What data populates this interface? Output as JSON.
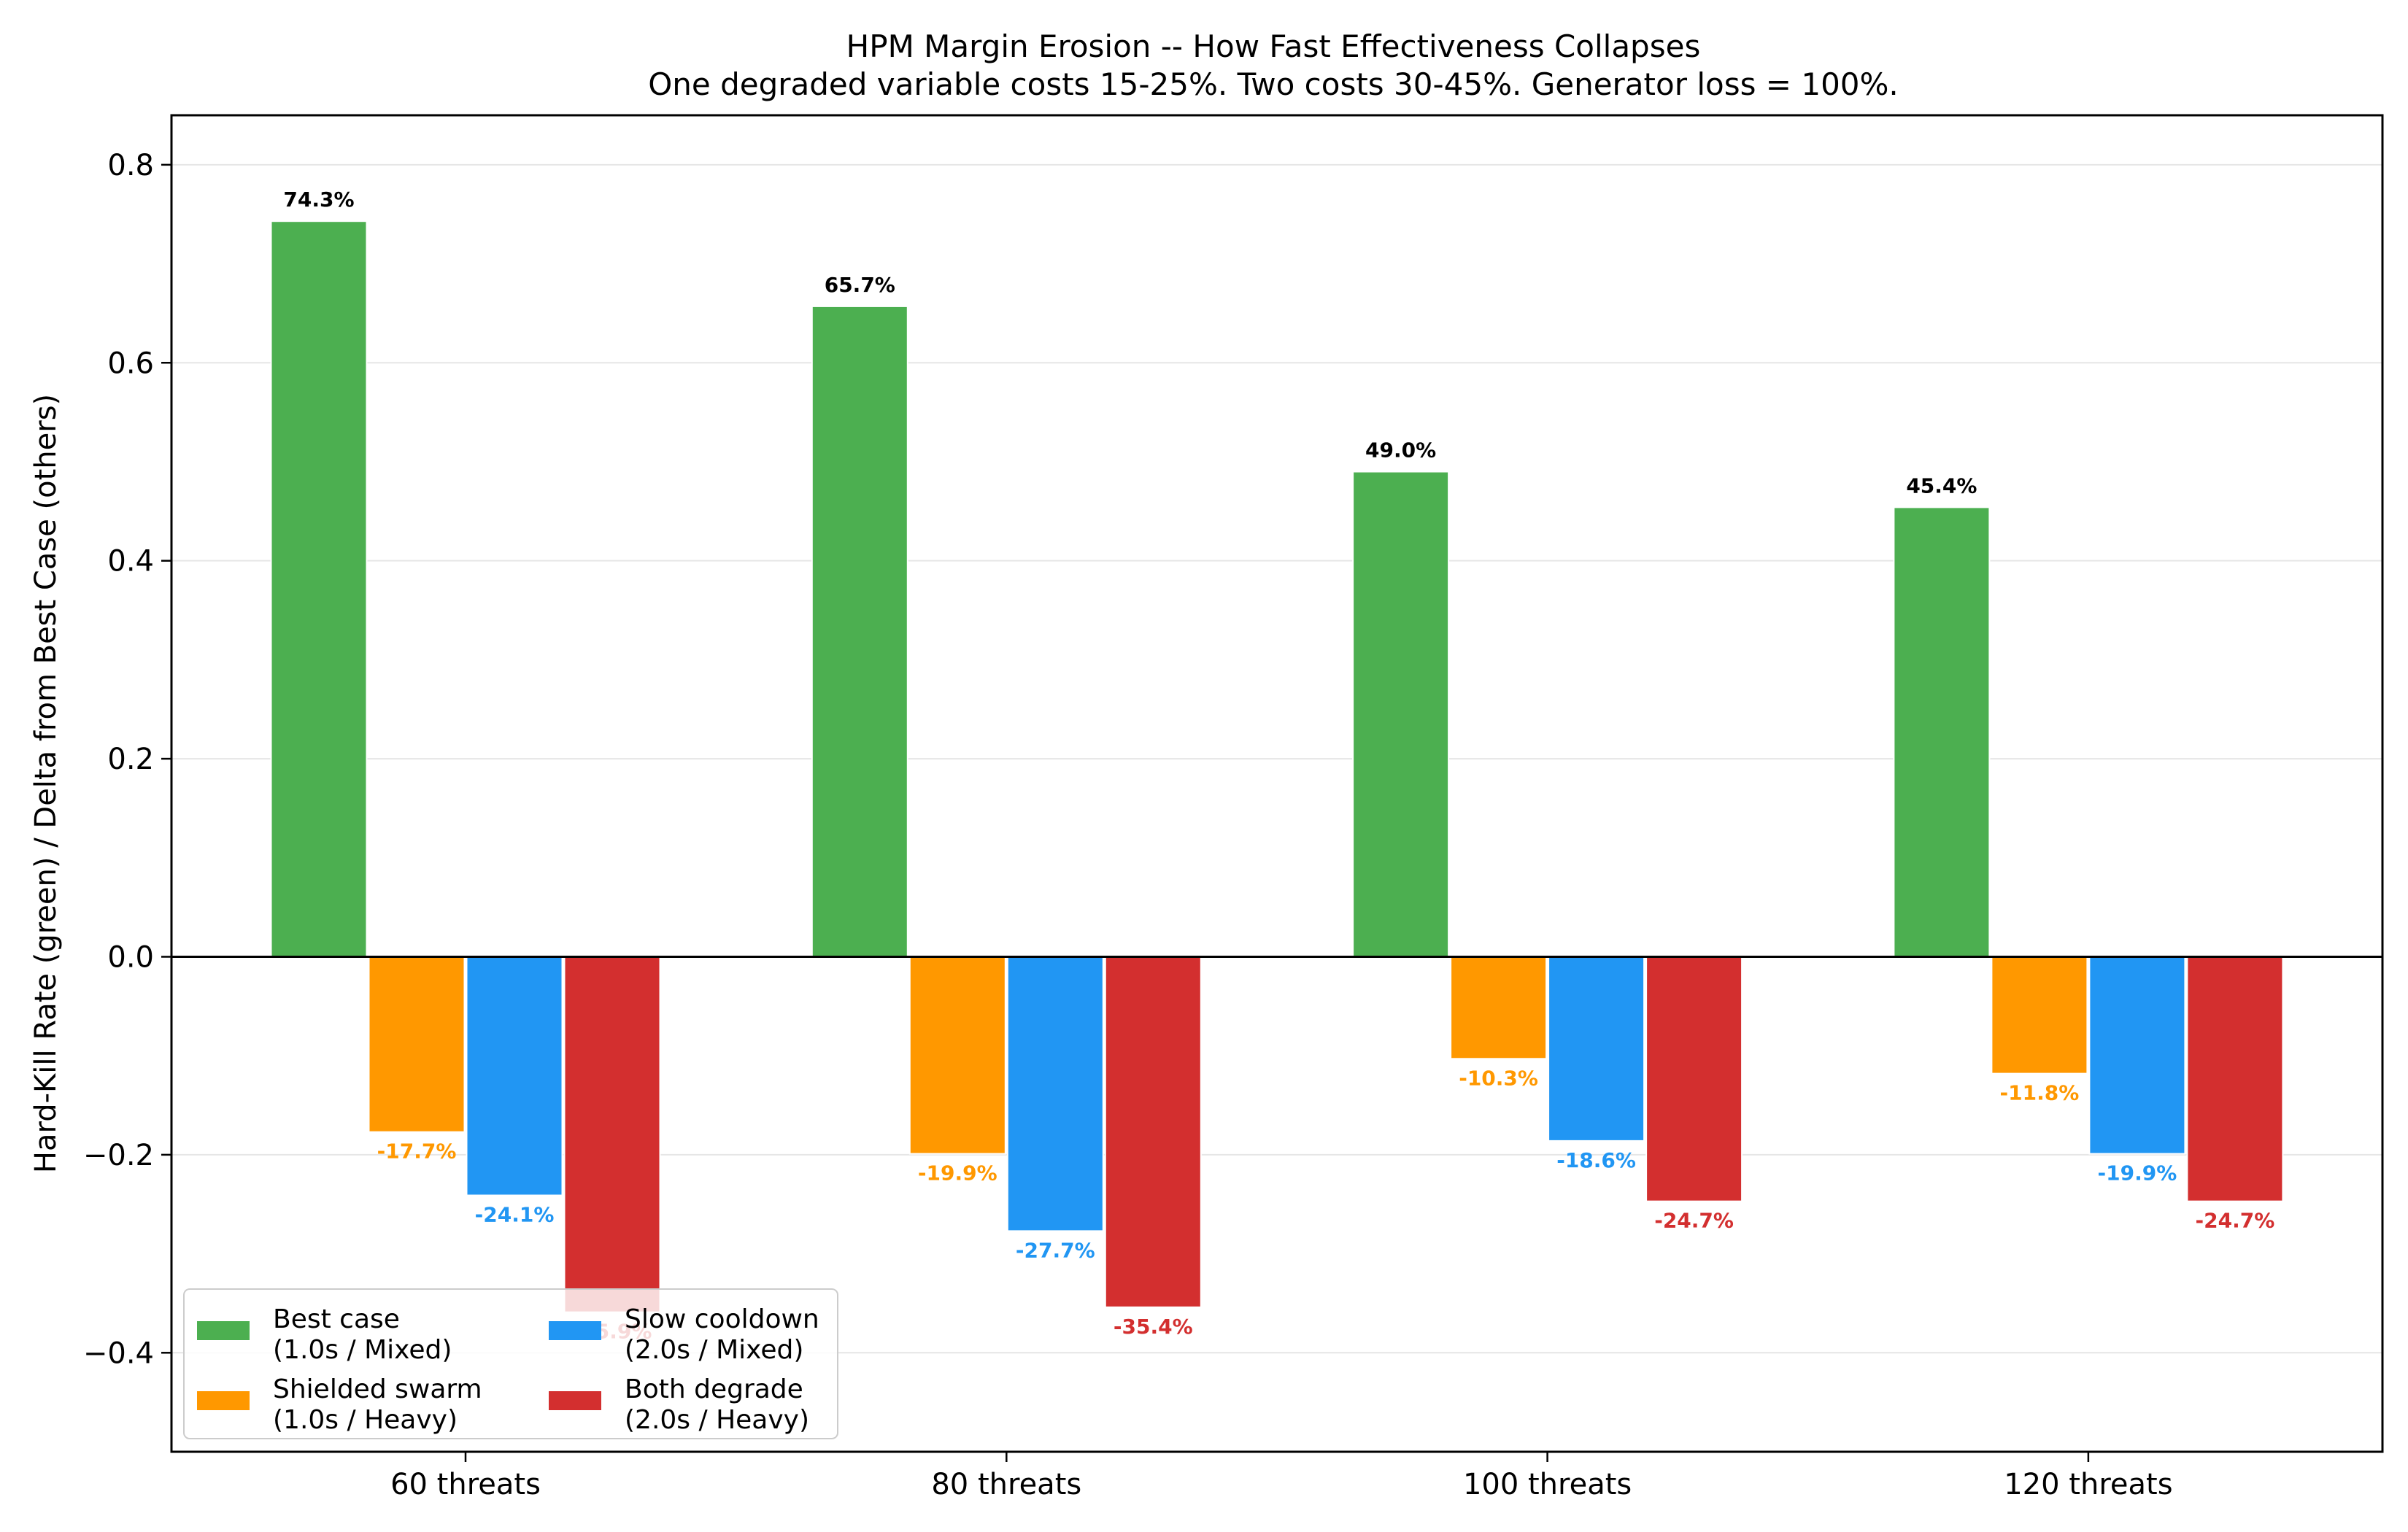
{
  "chart_data": {
    "type": "bar",
    "title": "HPM Margin Erosion -- How Fast Effectiveness Collapses",
    "subtitle": "One degraded variable costs 15-25%. Two costs 30-45%. Generator loss = 100%.",
    "xlabel": "",
    "ylabel": "Hard-Kill Rate (green) / Delta from Best Case (others)",
    "categories": [
      "60 threats",
      "80 threats",
      "100 threats",
      "120 threats"
    ],
    "ylim": [
      -0.5,
      0.85
    ],
    "yticks": [
      -0.4,
      -0.2,
      0.0,
      0.2,
      0.4,
      0.6,
      0.8
    ],
    "ytick_labels": [
      "−0.4",
      "−0.2",
      "0.0",
      "0.2",
      "0.4",
      "0.6",
      "0.8"
    ],
    "grid": "y",
    "legend_position": "lower-left",
    "series": [
      {
        "name": "Best case\n(1.0s / Mixed)",
        "color": "#4caf50",
        "label_color": "#000000",
        "values": [
          0.743,
          0.657,
          0.49,
          0.454
        ],
        "labels": [
          "74.3%",
          "65.7%",
          "49.0%",
          "45.4%"
        ]
      },
      {
        "name": "Shielded swarm\n(1.0s / Heavy)",
        "color": "#ff9800",
        "label_color": "#ff9800",
        "values": [
          -0.177,
          -0.199,
          -0.103,
          -0.118
        ],
        "labels": [
          "-17.7%",
          "-19.9%",
          "-10.3%",
          "-11.8%"
        ]
      },
      {
        "name": "Slow cooldown\n(2.0s / Mixed)",
        "color": "#2196f3",
        "label_color": "#2196f3",
        "values": [
          -0.241,
          -0.277,
          -0.186,
          -0.199
        ],
        "labels": [
          "-24.1%",
          "-27.7%",
          "-18.6%",
          "-19.9%"
        ]
      },
      {
        "name": "Both degrade\n(2.0s / Heavy)",
        "color": "#d32f2f",
        "label_color": "#d32f2f",
        "values": [
          -0.359,
          -0.354,
          -0.247,
          -0.247
        ],
        "labels": [
          "-35.9%",
          "-35.4%",
          "-24.7%",
          "-24.7%"
        ]
      }
    ],
    "legend_order": [
      0,
      2,
      1,
      3
    ]
  }
}
